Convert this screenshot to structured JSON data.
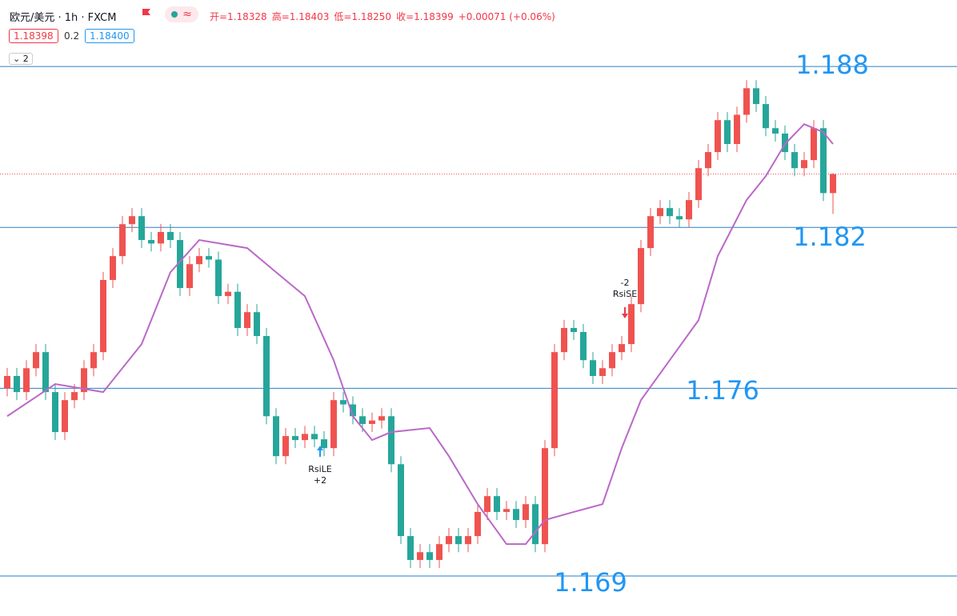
{
  "chart_data": {
    "type": "candlestick",
    "symbol": "欧元/美元 · 1h · FXCM",
    "ohlc_legend": [
      "开=1.18328",
      "高=1.18403",
      "低=1.18250",
      "收=1.18399",
      "+0.00071 (+0.06%)"
    ],
    "buttons": {
      "bid": "1.18398",
      "spread": "0.2",
      "ask": "1.18400",
      "collapse": "2"
    },
    "up_color": "#ef5350",
    "down_color": "#26a69a",
    "ylim": [
      1.16751,
      1.19048
    ],
    "open": [
      1.176,
      1.17646,
      1.17586,
      1.17675,
      1.17735,
      1.17586,
      1.17437,
      1.17556,
      1.17586,
      1.17675,
      1.17735,
      1.18004,
      1.18093,
      1.18212,
      1.18242,
      1.18153,
      1.1814,
      1.18183,
      1.18153,
      1.17974,
      1.18063,
      1.18093,
      1.1808,
      1.17944,
      1.1796,
      1.17825,
      1.17884,
      1.17795,
      1.17496,
      1.17347,
      1.17422,
      1.17407,
      1.1743,
      1.1741,
      1.17377,
      1.17556,
      1.1754,
      1.17496,
      1.17467,
      1.1748,
      1.17496,
      1.17317,
      1.17049,
      1.1696,
      1.16989,
      1.1696,
      1.17019,
      1.17049,
      1.17019,
      1.17049,
      1.17139,
      1.17198,
      1.17139,
      1.1715,
      1.17109,
      1.17168,
      1.17019,
      1.17377,
      1.17735,
      1.17825,
      1.1781,
      1.17705,
      1.17646,
      1.17675,
      1.17735,
      1.17765,
      1.17914,
      1.18123,
      1.18242,
      1.18272,
      1.18242,
      1.1823,
      1.18302,
      1.18421,
      1.18481,
      1.186,
      1.18511,
      1.1862,
      1.18719,
      1.1866,
      1.1857,
      1.1855,
      1.18481,
      1.18421,
      1.18451,
      1.1857,
      1.18328
    ],
    "high": [
      1.17676,
      1.17676,
      1.17705,
      1.17765,
      1.17765,
      1.17616,
      1.17586,
      1.17616,
      1.17705,
      1.17765,
      1.18034,
      1.18123,
      1.18242,
      1.18272,
      1.18272,
      1.18183,
      1.18213,
      1.18213,
      1.18183,
      1.18093,
      1.18123,
      1.18123,
      1.1811,
      1.1799,
      1.1799,
      1.17914,
      1.17914,
      1.17825,
      1.17526,
      1.17452,
      1.17452,
      1.1746,
      1.1746,
      1.1744,
      1.17586,
      1.17586,
      1.1757,
      1.17526,
      1.1751,
      1.17526,
      1.17526,
      1.17347,
      1.17079,
      1.17019,
      1.17019,
      1.17049,
      1.17079,
      1.17079,
      1.17079,
      1.17169,
      1.17228,
      1.17228,
      1.1718,
      1.1718,
      1.17198,
      1.17198,
      1.17407,
      1.17765,
      1.17855,
      1.17855,
      1.1784,
      1.17735,
      1.17705,
      1.17765,
      1.17795,
      1.17944,
      1.18153,
      1.18272,
      1.18302,
      1.18302,
      1.18272,
      1.18332,
      1.18451,
      1.18511,
      1.1863,
      1.1863,
      1.1865,
      1.18749,
      1.18749,
      1.1869,
      1.186,
      1.1858,
      1.18511,
      1.18481,
      1.186,
      1.186,
      1.18403
    ],
    "low": [
      1.1757,
      1.17556,
      1.17556,
      1.17645,
      1.17556,
      1.17407,
      1.17407,
      1.17526,
      1.17556,
      1.17645,
      1.17705,
      1.17974,
      1.18063,
      1.18182,
      1.18123,
      1.1811,
      1.1811,
      1.18123,
      1.17944,
      1.17944,
      1.18033,
      1.1805,
      1.17914,
      1.17914,
      1.17795,
      1.17795,
      1.17765,
      1.17466,
      1.17317,
      1.17317,
      1.17377,
      1.17377,
      1.1738,
      1.17347,
      1.17347,
      1.1751,
      1.17466,
      1.17437,
      1.17437,
      1.1745,
      1.17287,
      1.17019,
      1.1693,
      1.1693,
      1.1693,
      1.1693,
      1.16989,
      1.16989,
      1.16989,
      1.17019,
      1.17109,
      1.17109,
      1.17109,
      1.17079,
      1.17079,
      1.16989,
      1.16989,
      1.17347,
      1.17705,
      1.1778,
      1.17675,
      1.17616,
      1.17616,
      1.17645,
      1.17705,
      1.17735,
      1.17884,
      1.18093,
      1.18212,
      1.18212,
      1.182,
      1.182,
      1.18272,
      1.18391,
      1.18451,
      1.18481,
      1.18481,
      1.1859,
      1.1863,
      1.1854,
      1.1852,
      1.18451,
      1.18391,
      1.18391,
      1.18421,
      1.18298,
      1.1825
    ],
    "close": [
      1.17646,
      1.17586,
      1.17675,
      1.17735,
      1.17586,
      1.17437,
      1.17556,
      1.17586,
      1.17675,
      1.17735,
      1.18004,
      1.18093,
      1.18212,
      1.18242,
      1.18153,
      1.1814,
      1.18183,
      1.18153,
      1.17974,
      1.18063,
      1.18093,
      1.1808,
      1.17944,
      1.1796,
      1.17825,
      1.17884,
      1.17795,
      1.17496,
      1.17347,
      1.17422,
      1.17407,
      1.1743,
      1.1741,
      1.17377,
      1.17556,
      1.1754,
      1.17496,
      1.17467,
      1.1748,
      1.17496,
      1.17317,
      1.17049,
      1.1696,
      1.16989,
      1.1696,
      1.17019,
      1.17049,
      1.17019,
      1.17049,
      1.17139,
      1.17198,
      1.17139,
      1.1715,
      1.17109,
      1.17168,
      1.17019,
      1.17377,
      1.17735,
      1.17825,
      1.1781,
      1.17705,
      1.17646,
      1.17675,
      1.17735,
      1.17765,
      1.17914,
      1.18123,
      1.18242,
      1.18272,
      1.18242,
      1.1823,
      1.18302,
      1.18421,
      1.18481,
      1.186,
      1.18511,
      1.1862,
      1.18719,
      1.1866,
      1.1857,
      1.1855,
      1.18481,
      1.18421,
      1.18451,
      1.1857,
      1.18328,
      1.18399
    ],
    "moving_average": {
      "color": "#ba68c8",
      "x": [
        0,
        5,
        10,
        14,
        17,
        20,
        25,
        28,
        31,
        34,
        36,
        38,
        40,
        44,
        46,
        49,
        52,
        54,
        56,
        59,
        62,
        64,
        66,
        69,
        72,
        74,
        77,
        79,
        81,
        83,
        85,
        86
      ],
      "values": [
        1.17496,
        1.17616,
        1.17586,
        1.17765,
        1.18033,
        1.18153,
        1.18123,
        1.18033,
        1.17944,
        1.17705,
        1.17496,
        1.17407,
        1.17437,
        1.17452,
        1.17347,
        1.17168,
        1.17019,
        1.17019,
        1.17109,
        1.17139,
        1.17168,
        1.17377,
        1.17556,
        1.17705,
        1.17854,
        1.18093,
        1.18302,
        1.18391,
        1.18511,
        1.18585,
        1.18555,
        1.18511
      ]
    },
    "levels": {
      "color": "#2a7fc4",
      "label_color": "#2196f3",
      "values": [
        1.188,
        1.182,
        1.176,
        1.169
      ]
    },
    "signals": [
      {
        "text": "RsiLE",
        "qty": "+2"
      },
      {
        "text": "RsiSE",
        "qty": "-2"
      }
    ]
  }
}
